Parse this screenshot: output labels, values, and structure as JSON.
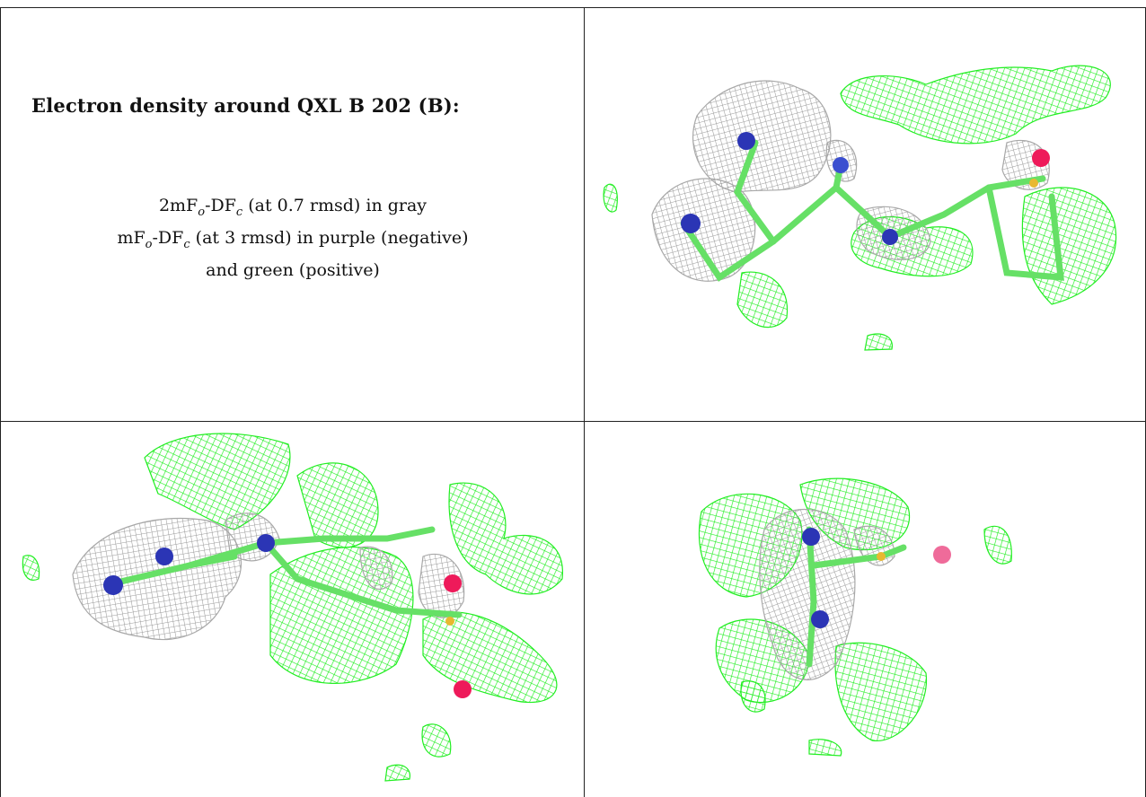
{
  "caption": {
    "title": "Electron density around QXL B 202 (B):",
    "line1": {
      "prefix": "2mF",
      "sub1": "o",
      "mid": "-DF",
      "sub2": "c",
      "suffix": " (at 0.7 rmsd) in gray"
    },
    "line2": {
      "prefix": "mF",
      "sub1": "o",
      "mid": "-DF",
      "sub2": "c",
      "suffix": " (at 3 rmsd) in purple (negative)"
    },
    "line3": "and green (positive)"
  },
  "colors": {
    "positive_mesh": "#22ee22",
    "gray_mesh": "#a8a8a8",
    "nitrogen": "#2b35b5",
    "oxygen": "#ee1a5a",
    "sulfur": "#e8b830",
    "carbon_bond": "#66e066",
    "border": "#222222"
  },
  "panels": [
    {
      "name": "view-top-right",
      "icon": "electron-density-mesh"
    },
    {
      "name": "view-bottom-left",
      "icon": "electron-density-mesh"
    },
    {
      "name": "view-bottom-right",
      "icon": "electron-density-mesh"
    }
  ]
}
